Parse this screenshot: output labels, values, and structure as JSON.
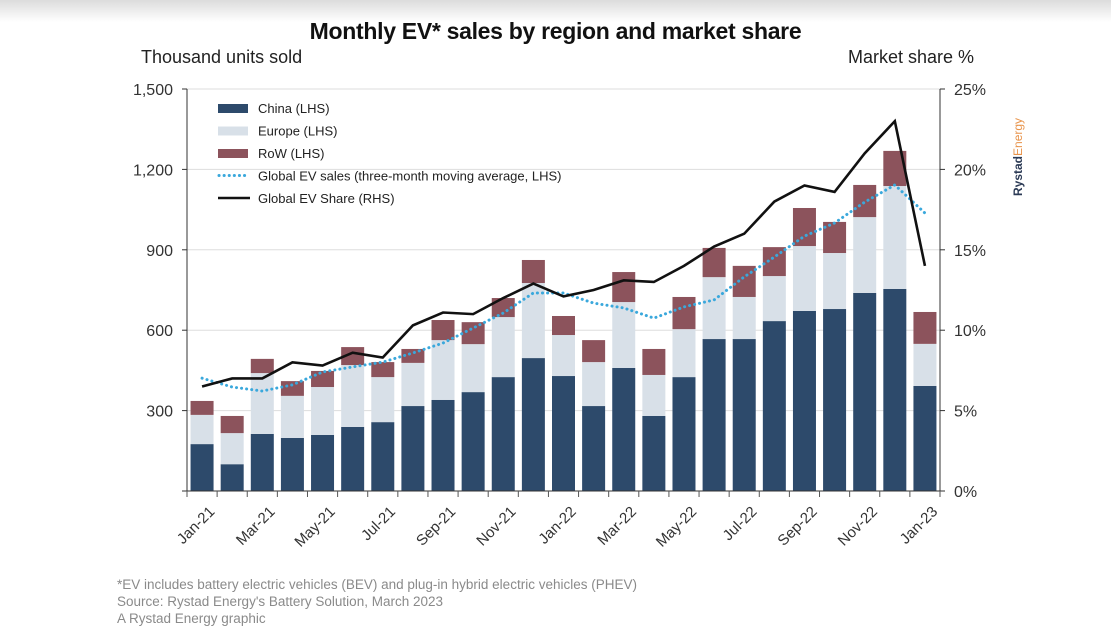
{
  "page": {
    "title": "Monthly EV* sales by region and market share",
    "left_axis_title": "Thousand units sold",
    "right_axis_title": "Market share %",
    "logo": {
      "part1": "Rystad",
      "part2": "Energy"
    },
    "footnotes": [
      "*EV includes battery electric vehicles (BEV) and plug-in hybrid electric vehicles (PHEV)",
      "Source: Rystad Energy's Battery Solution, March 2023",
      "A Rystad Energy graphic"
    ]
  },
  "colors": {
    "china": "#2d4a6b",
    "europe": "#d8e0e8",
    "row": "#8c535c",
    "moving_avg": "#3aa8dc",
    "share": "#111111",
    "grid": "#dddddd",
    "logo_primary": "#2b3a55",
    "logo_accent": "#e8934a"
  },
  "chart_data": {
    "type": "bar",
    "stacked": true,
    "title": "Monthly EV* sales by region and market share",
    "ylabel": "Thousand units sold",
    "y2label": "Market share %",
    "ylim": [
      0,
      1500
    ],
    "y2lim": [
      0,
      25
    ],
    "yticks": [
      "1,500",
      "1,200",
      "900",
      "600",
      "300",
      ""
    ],
    "ytick_values": [
      1500,
      1200,
      900,
      600,
      300,
      0
    ],
    "y2ticks": [
      "25%",
      "20%",
      "15%",
      "10%",
      "5%",
      "0%"
    ],
    "y2tick_values": [
      25,
      20,
      15,
      10,
      5,
      0
    ],
    "grid": true,
    "legend_position": "top-left",
    "categories": [
      "Jan-21",
      "Feb-21",
      "Mar-21",
      "Apr-21",
      "May-21",
      "Jun-21",
      "Jul-21",
      "Aug-21",
      "Sep-21",
      "Oct-21",
      "Nov-21",
      "Dec-21",
      "Jan-22",
      "Feb-22",
      "Mar-22",
      "Apr-22",
      "May-22",
      "Jun-22",
      "Jul-22",
      "Aug-22",
      "Sep-22",
      "Oct-22",
      "Nov-22",
      "Dec-22",
      "Jan-23"
    ],
    "xtick_labels": [
      "Jan-21",
      "Mar-21",
      "May-21",
      "Jul-21",
      "Sep-21",
      "Nov-21",
      "Jan-22",
      "Mar-22",
      "May-22",
      "Jul-22",
      "Sep-22",
      "Nov-22",
      "Jan-23"
    ],
    "series": [
      {
        "name": "China (LHS)",
        "type": "bar",
        "axis": "left",
        "values": [
          175,
          100,
          213,
          198,
          209,
          239,
          257,
          317,
          340,
          369,
          425,
          496,
          429,
          317,
          459,
          280,
          425,
          567,
          567,
          634,
          672,
          679,
          739,
          754,
          392
        ]
      },
      {
        "name": "Europe (LHS)",
        "type": "bar",
        "axis": "left",
        "values": [
          109,
          116,
          227,
          157,
          179,
          231,
          168,
          161,
          223,
          179,
          224,
          280,
          153,
          164,
          246,
          153,
          179,
          231,
          157,
          168,
          242,
          209,
          283,
          384,
          157
        ]
      },
      {
        "name": "RoW (LHS)",
        "type": "bar",
        "axis": "left",
        "values": [
          52,
          64,
          53,
          55,
          60,
          67,
          56,
          52,
          75,
          82,
          71,
          86,
          71,
          82,
          112,
          97,
          120,
          109,
          116,
          108,
          142,
          116,
          120,
          131,
          119
        ]
      },
      {
        "name": "Global EV sales (three-month moving average, LHS)",
        "type": "line",
        "style": "dotted",
        "axis": "left",
        "values": [
          421,
          388,
          373,
          396,
          444,
          463,
          481,
          515,
          552,
          608,
          664,
          739,
          739,
          701,
          683,
          645,
          687,
          713,
          799,
          873,
          951,
          1000,
          1078,
          1142,
          1037
        ]
      },
      {
        "name": "Global EV Share (RHS)",
        "type": "line",
        "style": "solid",
        "axis": "right",
        "values": [
          6.5,
          7.0,
          7.0,
          8.0,
          7.8,
          8.6,
          8.3,
          10.3,
          11.1,
          11.0,
          12.0,
          12.9,
          12.1,
          12.5,
          13.1,
          13.0,
          14.0,
          15.2,
          16.0,
          18.0,
          19.0,
          18.6,
          21.0,
          23.0,
          14.0
        ]
      }
    ]
  }
}
